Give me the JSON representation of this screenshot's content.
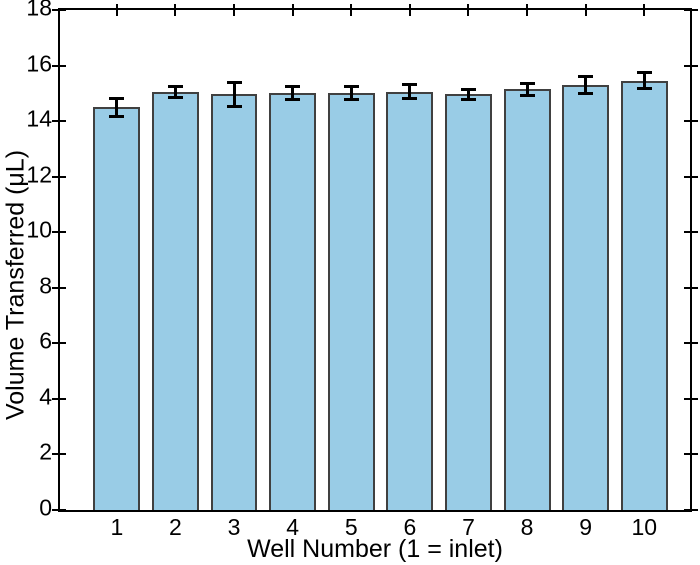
{
  "chart_data": {
    "type": "bar",
    "xlabel": "Well Number (1 = inlet)",
    "ylabel": "Volume Transferred (μL)",
    "categories": [
      "1",
      "2",
      "3",
      "4",
      "5",
      "6",
      "7",
      "8",
      "9",
      "10"
    ],
    "values": [
      14.5,
      15.05,
      14.97,
      15.02,
      15.01,
      15.06,
      14.96,
      15.14,
      15.3,
      15.45
    ],
    "error_bars": [
      0.35,
      0.2,
      0.45,
      0.26,
      0.26,
      0.28,
      0.2,
      0.24,
      0.33,
      0.31
    ],
    "xlim": [
      0.03,
      10.78
    ],
    "ylim": [
      0,
      18
    ],
    "yticks": [
      0,
      2,
      4,
      6,
      8,
      10,
      12,
      14,
      16,
      18
    ],
    "bar_width_fraction": 0.8,
    "grid": false,
    "legend": null,
    "colors": {
      "bar_fill": "#99cce6",
      "bar_edge": "#404040",
      "error_bar": "#000000",
      "axis": "#000000",
      "background": "#ffffff"
    }
  }
}
